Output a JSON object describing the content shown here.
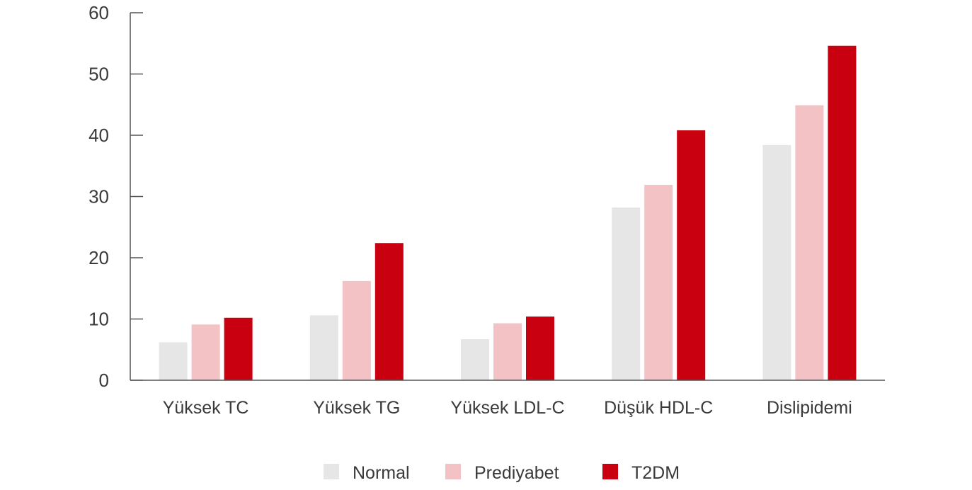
{
  "chart_data": {
    "type": "bar",
    "title": "",
    "xlabel": "",
    "ylabel": "",
    "ylim": [
      0,
      60
    ],
    "yticks": [
      0,
      10,
      20,
      30,
      40,
      50,
      60
    ],
    "grid": false,
    "legend_position": "bottom",
    "categories": [
      "Yüksek TC",
      "Yüksek TG",
      "Yüksek LDL-C",
      "Düşük HDL-C",
      "Dislipidemi"
    ],
    "series": [
      {
        "name": "Normal",
        "color": "#e6e6e6",
        "values": [
          6.2,
          10.6,
          6.7,
          28.2,
          38.4
        ]
      },
      {
        "name": "Prediyabet",
        "color": "#f2c2c5",
        "values": [
          9.1,
          16.2,
          9.3,
          31.9,
          44.9
        ]
      },
      {
        "name": "T2DM",
        "color": "#c8000f",
        "values": [
          10.2,
          22.4,
          10.4,
          40.8,
          54.6
        ]
      }
    ]
  }
}
